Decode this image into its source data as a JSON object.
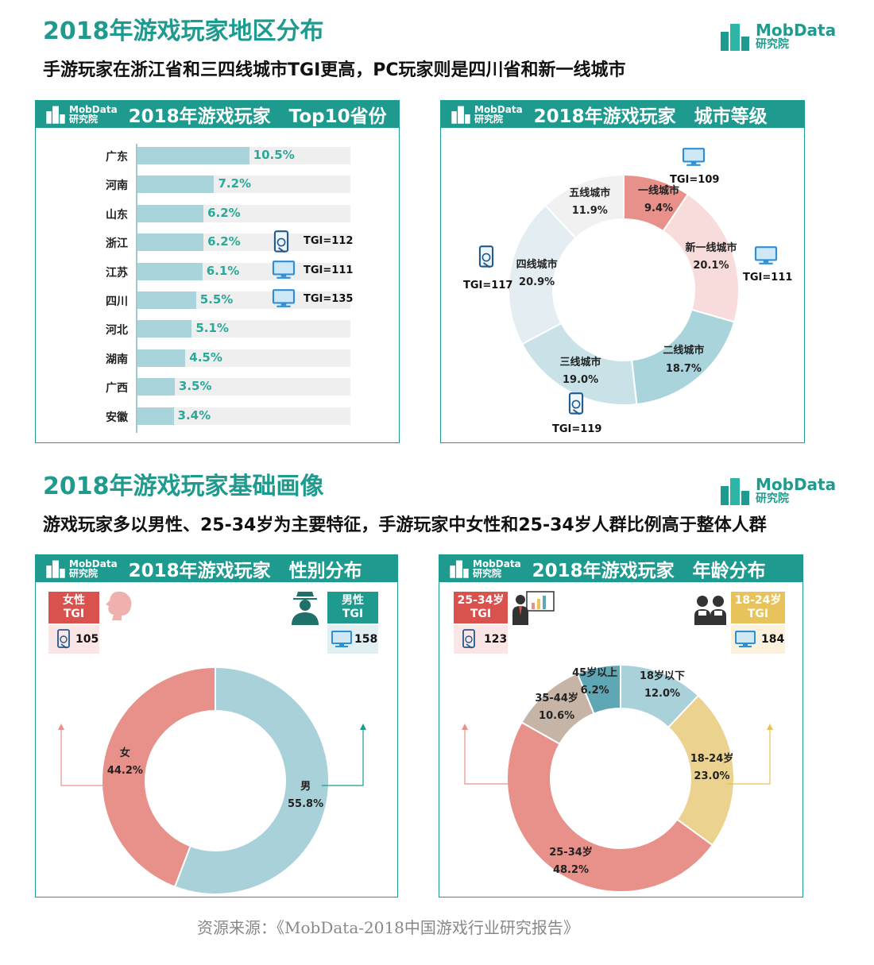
{
  "section1": {
    "title": "2018年游戏玩家地区分布",
    "subtitle": "手游玩家在浙江省和三四线城市TGI更高，PC玩家则是四川省和新一线城市"
  },
  "section2": {
    "title": "2018年游戏玩家基础画像",
    "subtitle": "游戏玩家多以男性、25-34岁为主要特征，手游玩家中女性和25-34岁人群比例高于整体人群"
  },
  "logo": {
    "line1": "MobData",
    "line2": "研究院"
  },
  "colors": {
    "brand": "#1f9a8e",
    "bar": "#a9d4dc",
    "female": "#e8908a",
    "male": "#a8d1da",
    "tgi_red": "#d9524e",
    "tgi_teal": "#1f9a8e",
    "tgi_yellow": "#e8c25a"
  },
  "panels": {
    "provinces": "2018年游戏玩家　Top10省份",
    "city": "2018年游戏玩家　城市等级",
    "gender": "2018年游戏玩家　性别分布",
    "age": "2018年游戏玩家　年龄分布"
  },
  "chart_data": [
    {
      "type": "bar",
      "categories": [
        "广东",
        "河南",
        "山东",
        "浙江",
        "江苏",
        "四川",
        "河北",
        "湖南",
        "广西",
        "安徽"
      ],
      "values": [
        10.5,
        7.2,
        6.2,
        6.2,
        6.1,
        5.5,
        5.1,
        4.5,
        3.5,
        3.4
      ],
      "value_labels": [
        "10.5%",
        "7.2%",
        "6.2%",
        "6.2%",
        "6.1%",
        "5.5%",
        "5.1%",
        "4.5%",
        "3.5%",
        "3.4%"
      ],
      "xlim": [
        0,
        20
      ],
      "annotations": [
        {
          "category": "浙江",
          "device": "mobile-icon",
          "text": "TGI=112"
        },
        {
          "category": "江苏",
          "device": "monitor-icon",
          "text": "TGI=111"
        },
        {
          "category": "四川",
          "device": "monitor-icon",
          "text": "TGI=135"
        }
      ]
    },
    {
      "type": "pie",
      "labels": [
        "一线城市",
        "新一线城市",
        "二线城市",
        "三线城市",
        "四线城市",
        "五线城市"
      ],
      "values": [
        9.4,
        20.1,
        18.7,
        19.0,
        20.9,
        11.9
      ],
      "value_labels": [
        "9.4%",
        "20.1%",
        "18.7%",
        "19.0%",
        "20.9%",
        "11.9%"
      ],
      "colors": [
        "#e8908a",
        "#f8dcdc",
        "#a9d4dc",
        "#c8e2e8",
        "#e4eef2",
        "#f1f1f1"
      ],
      "annotations": [
        {
          "label": "一线城市",
          "device": "monitor-icon",
          "text": "TGI=109"
        },
        {
          "label": "新一线城市",
          "device": "monitor-icon",
          "text": "TGI=111"
        },
        {
          "label": "三线城市",
          "device": "mobile-icon",
          "text": "TGI=119"
        },
        {
          "label": "四线城市",
          "device": "mobile-icon",
          "text": "TGI=117"
        }
      ]
    },
    {
      "type": "pie",
      "labels": [
        "男",
        "女"
      ],
      "values": [
        55.8,
        44.2
      ],
      "value_labels": [
        "55.8%",
        "44.2%"
      ],
      "colors": [
        "#a8d1da",
        "#e8908a"
      ],
      "tgi": {
        "female": {
          "title": "女性\nTGI",
          "mobile": "105"
        },
        "male": {
          "title": "男性\nTGI",
          "pc": "158"
        }
      }
    },
    {
      "type": "pie",
      "labels": [
        "18岁以下",
        "18-24岁",
        "25-34岁",
        "35-44岁",
        "45岁以上"
      ],
      "values": [
        12.0,
        23.0,
        48.2,
        10.6,
        6.2
      ],
      "value_labels": [
        "12.0%",
        "23.0%",
        "48.2%",
        "10.6%",
        "6.2%"
      ],
      "colors": [
        "#a8d1da",
        "#ecd28f",
        "#e8908a",
        "#c6b4a6",
        "#5fa7b4"
      ],
      "tgi": {
        "group_25_34": {
          "title": "25-34岁\nTGI",
          "mobile": "123"
        },
        "group_18_24": {
          "title": "18-24岁\nTGI",
          "pc": "184"
        }
      }
    }
  ],
  "source": "资源来源：《MobData-2018中国游戏行业研究报告》"
}
